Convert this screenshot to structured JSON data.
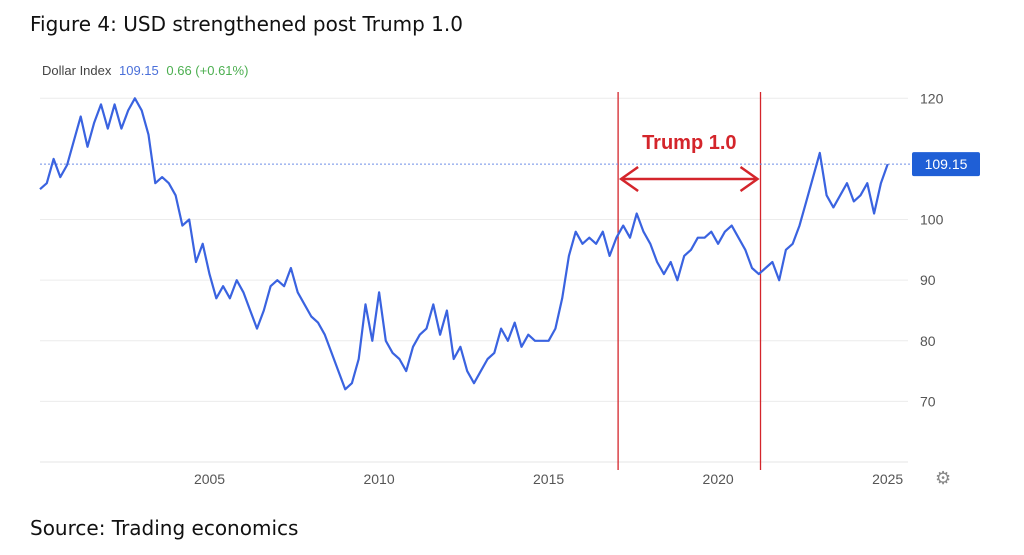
{
  "figure_title": "Figure 4: USD strengthened post Trump 1.0",
  "source": "Source: Trading economics",
  "header": {
    "series_label": "Dollar Index",
    "value": "109.15",
    "change": "0.66 (+0.61%)"
  },
  "settings_icon": "gear-icon",
  "colors": {
    "line": "#3a63e0",
    "annotation": "#d4252b",
    "badge": "#1f5fd6",
    "change": "#4caf50"
  },
  "chart_data": {
    "type": "line",
    "title": "",
    "xlabel": "",
    "ylabel": "",
    "xlim": [
      2000.0,
      2025.6
    ],
    "ylim": [
      60,
      125
    ],
    "x_ticks": [
      2005,
      2010,
      2015,
      2020,
      2025
    ],
    "y_ticks": [
      70,
      80,
      90,
      100,
      120
    ],
    "grid": true,
    "current_value": 109.15,
    "current_label": "109.15",
    "series": [
      {
        "points": [
          [
            2000.0,
            105
          ],
          [
            2000.2,
            106
          ],
          [
            2000.4,
            110
          ],
          [
            2000.6,
            107
          ],
          [
            2000.8,
            109
          ],
          [
            2001.0,
            113
          ],
          [
            2001.2,
            117
          ],
          [
            2001.4,
            112
          ],
          [
            2001.6,
            116
          ],
          [
            2001.8,
            119
          ],
          [
            2002.0,
            115
          ],
          [
            2002.2,
            119
          ],
          [
            2002.4,
            115
          ],
          [
            2002.6,
            118
          ],
          [
            2002.8,
            120
          ],
          [
            2003.0,
            118
          ],
          [
            2003.2,
            114
          ],
          [
            2003.4,
            106
          ],
          [
            2003.6,
            107
          ],
          [
            2003.8,
            106
          ],
          [
            2004.0,
            104
          ],
          [
            2004.2,
            99
          ],
          [
            2004.4,
            100
          ],
          [
            2004.6,
            93
          ],
          [
            2004.8,
            96
          ],
          [
            2005.0,
            91
          ],
          [
            2005.2,
            87
          ],
          [
            2005.4,
            89
          ],
          [
            2005.6,
            87
          ],
          [
            2005.8,
            90
          ],
          [
            2006.0,
            88
          ],
          [
            2006.2,
            85
          ],
          [
            2006.4,
            82
          ],
          [
            2006.6,
            85
          ],
          [
            2006.8,
            89
          ],
          [
            2007.0,
            90
          ],
          [
            2007.2,
            89
          ],
          [
            2007.4,
            92
          ],
          [
            2007.6,
            88
          ],
          [
            2007.8,
            86
          ],
          [
            2008.0,
            84
          ],
          [
            2008.2,
            83
          ],
          [
            2008.4,
            81
          ],
          [
            2008.6,
            78
          ],
          [
            2008.8,
            75
          ],
          [
            2009.0,
            72
          ],
          [
            2009.2,
            73
          ],
          [
            2009.4,
            77
          ],
          [
            2009.6,
            86
          ],
          [
            2009.8,
            80
          ],
          [
            2010.0,
            88
          ],
          [
            2010.2,
            80
          ],
          [
            2010.4,
            78
          ],
          [
            2010.6,
            77
          ],
          [
            2010.8,
            75
          ],
          [
            2011.0,
            79
          ],
          [
            2011.2,
            81
          ],
          [
            2011.4,
            82
          ],
          [
            2011.6,
            86
          ],
          [
            2011.8,
            81
          ],
          [
            2012.0,
            85
          ],
          [
            2012.2,
            77
          ],
          [
            2012.4,
            79
          ],
          [
            2012.6,
            75
          ],
          [
            2012.8,
            73
          ],
          [
            2013.0,
            75
          ],
          [
            2013.2,
            77
          ],
          [
            2013.4,
            78
          ],
          [
            2013.6,
            82
          ],
          [
            2013.8,
            80
          ],
          [
            2014.0,
            83
          ],
          [
            2014.2,
            79
          ],
          [
            2014.4,
            81
          ],
          [
            2014.6,
            80
          ],
          [
            2014.8,
            80
          ],
          [
            2015.0,
            80
          ],
          [
            2015.2,
            82
          ],
          [
            2015.4,
            87
          ],
          [
            2015.6,
            94
          ],
          [
            2015.8,
            98
          ],
          [
            2016.0,
            96
          ],
          [
            2016.2,
            97
          ],
          [
            2016.4,
            96
          ],
          [
            2016.6,
            98
          ],
          [
            2016.8,
            94
          ],
          [
            2017.0,
            97
          ],
          [
            2017.2,
            99
          ],
          [
            2017.4,
            97
          ],
          [
            2017.6,
            101
          ],
          [
            2017.8,
            98
          ],
          [
            2018.0,
            96
          ],
          [
            2018.2,
            93
          ],
          [
            2018.4,
            91
          ],
          [
            2018.6,
            93
          ],
          [
            2018.8,
            90
          ],
          [
            2019.0,
            94
          ],
          [
            2019.2,
            95
          ],
          [
            2019.4,
            97
          ],
          [
            2019.6,
            97
          ],
          [
            2019.8,
            98
          ],
          [
            2020.0,
            96
          ],
          [
            2020.2,
            98
          ],
          [
            2020.4,
            99
          ],
          [
            2020.6,
            97
          ],
          [
            2020.8,
            95
          ],
          [
            2021.0,
            92
          ],
          [
            2021.2,
            91
          ],
          [
            2021.4,
            92
          ],
          [
            2021.6,
            93
          ],
          [
            2021.8,
            90
          ],
          [
            2022.0,
            95
          ],
          [
            2022.2,
            96
          ],
          [
            2022.4,
            99
          ],
          [
            2022.6,
            103
          ],
          [
            2022.8,
            107
          ],
          [
            2023.0,
            111
          ],
          [
            2023.2,
            104
          ],
          [
            2023.4,
            102
          ],
          [
            2023.6,
            104
          ],
          [
            2023.8,
            106
          ],
          [
            2024.0,
            103
          ],
          [
            2024.2,
            104
          ],
          [
            2024.4,
            106
          ],
          [
            2024.6,
            101
          ],
          [
            2024.8,
            106
          ],
          [
            2025.0,
            109.15
          ]
        ]
      }
    ],
    "annotation": {
      "label": "Trump 1.0",
      "start": 2017.05,
      "end": 2021.25
    }
  }
}
